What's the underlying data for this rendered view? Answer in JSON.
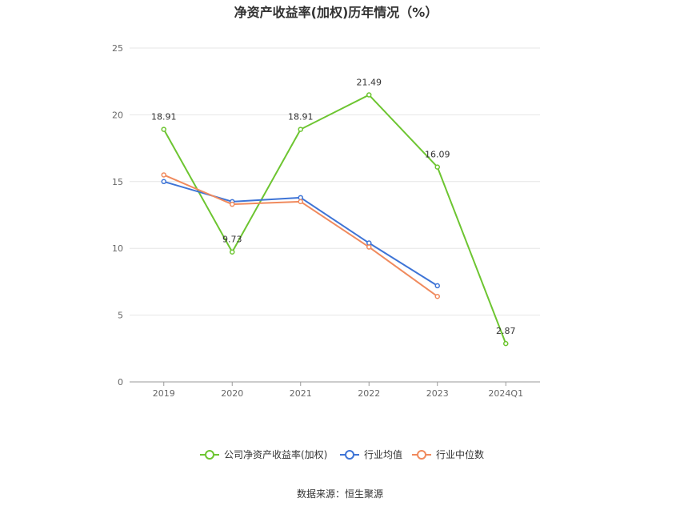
{
  "chart_data": {
    "type": "line",
    "title": "净资产收益率(加权)历年情况（%）",
    "categories": [
      "2019",
      "2020",
      "2021",
      "2022",
      "2023",
      "2024Q1"
    ],
    "ylim": [
      0,
      25
    ],
    "yticks": [
      0,
      5,
      10,
      15,
      20,
      25
    ],
    "grid": true,
    "legend_position": "bottom",
    "series": [
      {
        "name": "公司净资产收益率(加权)",
        "color": "#6dc531",
        "values": [
          18.91,
          9.73,
          18.91,
          21.49,
          16.09,
          2.87
        ],
        "labels": [
          "18.91",
          "9.73",
          "18.91",
          "21.49",
          "16.09",
          "2.87"
        ]
      },
      {
        "name": "行业均值",
        "color": "#3e74d6",
        "values": [
          15.0,
          13.5,
          13.8,
          10.4,
          7.2,
          null
        ]
      },
      {
        "name": "行业中位数",
        "color": "#f08a5d",
        "values": [
          15.5,
          13.3,
          13.5,
          10.1,
          6.4,
          null
        ]
      }
    ]
  },
  "source": "数据来源：恒生聚源"
}
